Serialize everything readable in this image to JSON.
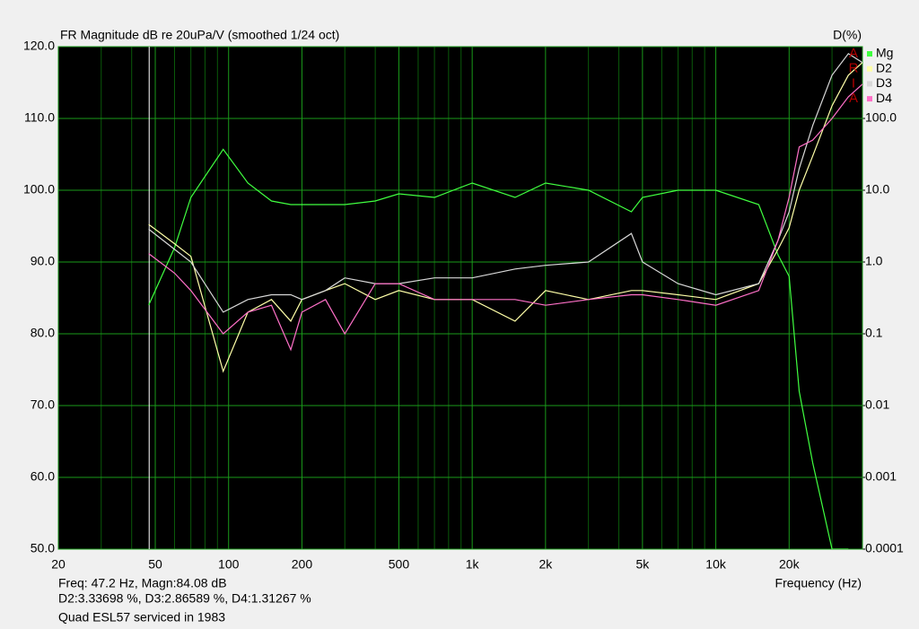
{
  "chart_data": {
    "type": "line",
    "title": "FR Magnitude dB re 20uPa/V (smoothed 1/24 oct)",
    "y2_label": "D(%)",
    "x_label": "Frequency (Hz)",
    "x_scale": "log",
    "y2_scale": "log",
    "grid": true,
    "xlim": [
      20,
      40000
    ],
    "xticks": [
      20,
      50,
      100,
      200,
      500,
      {
        "value": 1000,
        "label": "1k"
      },
      {
        "value": 2000,
        "label": "2k"
      },
      {
        "value": 5000,
        "label": "5k"
      },
      {
        "value": 10000,
        "label": "10k"
      },
      {
        "value": 20000,
        "label": "20k"
      }
    ],
    "xminorticks": [
      30,
      40,
      60,
      70,
      80,
      90,
      300,
      400,
      600,
      700,
      800,
      900,
      3000,
      4000,
      6000,
      7000,
      8000,
      9000,
      30000
    ],
    "ylim": [
      50,
      120
    ],
    "yticks": [
      {
        "value": 50,
        "label": "50.0"
      },
      {
        "value": 60,
        "label": "60.0"
      },
      {
        "value": 70,
        "label": "70.0"
      },
      {
        "value": 80,
        "label": "80.0"
      },
      {
        "value": 90,
        "label": "90.0"
      },
      {
        "value": 100,
        "label": "100.0"
      },
      {
        "value": 110,
        "label": "110.0"
      },
      {
        "value": 120,
        "label": "120.0"
      }
    ],
    "y2lim": [
      0.0001,
      1000
    ],
    "y2ticks": [
      0.0001,
      0.001,
      0.01,
      0.1,
      {
        "value": 1,
        "label": "1.0"
      },
      {
        "value": 10,
        "label": "10.0"
      },
      {
        "value": 100,
        "label": "100.0"
      }
    ],
    "legend": "top-right",
    "overlay_letters": [
      "A",
      "R",
      "I",
      "A"
    ],
    "cursor": 47.2,
    "x": [
      47,
      60,
      70,
      95,
      120,
      150,
      180,
      200,
      250,
      300,
      400,
      500,
      700,
      1000,
      1500,
      2000,
      3000,
      4500,
      5000,
      7000,
      10000,
      15000,
      18000,
      20000,
      22000,
      25000,
      30000,
      35000,
      40000
    ],
    "series": [
      {
        "name": "Mg",
        "color": "#40ff40",
        "values": [
          84,
          92,
          99,
          105.7,
          101,
          98.5,
          98,
          98,
          98,
          98,
          98.5,
          99.5,
          99,
          101,
          99,
          101,
          100,
          97,
          99,
          100,
          100,
          98,
          91,
          88,
          72,
          62,
          50,
          50,
          null
        ]
      },
      {
        "name": "D2",
        "color": "#ffffa8",
        "axis": "y2",
        "values": [
          3.34,
          1.8,
          1.2,
          0.03,
          0.2,
          0.3,
          0.15,
          0.3,
          0.4,
          0.5,
          0.3,
          0.4,
          0.3,
          0.3,
          0.15,
          0.4,
          0.3,
          0.4,
          0.4,
          0.35,
          0.3,
          0.5,
          1.5,
          3,
          10,
          30,
          150,
          400,
          600
        ]
      },
      {
        "name": "D3",
        "color": "#d8d8d8",
        "axis": "y2",
        "values": [
          2.87,
          1.5,
          1.0,
          0.2,
          0.3,
          0.35,
          0.35,
          0.3,
          0.4,
          0.6,
          0.5,
          0.5,
          0.6,
          0.6,
          0.8,
          0.9,
          1.0,
          2.5,
          1.0,
          0.5,
          0.35,
          0.5,
          2,
          5,
          20,
          80,
          400,
          800,
          600
        ]
      },
      {
        "name": "D4",
        "color": "#ff70c8",
        "axis": "y2",
        "values": [
          1.31,
          0.7,
          0.4,
          0.1,
          0.2,
          0.25,
          0.06,
          0.2,
          0.3,
          0.1,
          0.5,
          0.5,
          0.3,
          0.3,
          0.3,
          0.25,
          0.3,
          0.35,
          0.35,
          0.3,
          0.25,
          0.4,
          2,
          8,
          40,
          50,
          100,
          200,
          300
        ]
      }
    ],
    "footer": [
      "Freq: 47.2 Hz, Magn:84.08 dB",
      "D2:3.33698 %, D3:2.86589 %, D4:1.31267 %",
      "Quad ESL57 serviced in 1983"
    ]
  }
}
